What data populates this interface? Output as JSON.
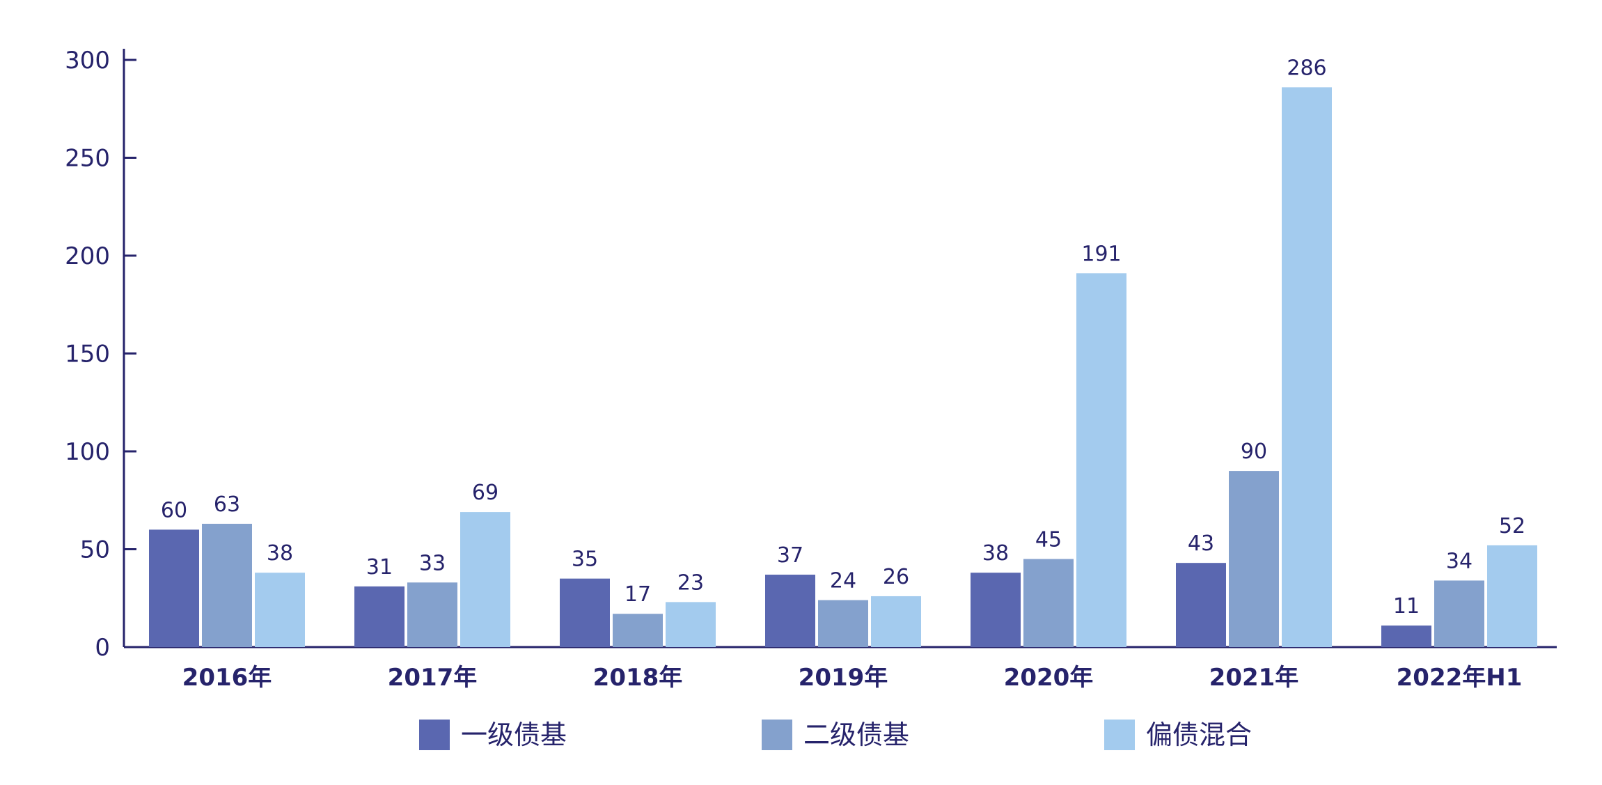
{
  "chart_data": {
    "type": "bar",
    "title": "",
    "xlabel": "",
    "ylabel": "",
    "categories": [
      "2016年",
      "2017年",
      "2018年",
      "2019年",
      "2020年",
      "2021年",
      "2022年H1"
    ],
    "series": [
      {
        "name": "一级债基",
        "color": "#5a67b0",
        "values": [
          60,
          31,
          35,
          37,
          38,
          43,
          11
        ]
      },
      {
        "name": "二级债基",
        "color": "#84a1cd",
        "values": [
          63,
          33,
          17,
          24,
          45,
          90,
          34
        ]
      },
      {
        "name": "偏债混合",
        "color": "#a3cbee",
        "values": [
          38,
          69,
          23,
          26,
          191,
          286,
          52
        ]
      }
    ],
    "ylim": [
      0,
      300
    ],
    "yticks": [
      0,
      50,
      100,
      150,
      200,
      250,
      300
    ],
    "grid": false,
    "legend_position": "bottom",
    "axis_color": "#26236b"
  }
}
